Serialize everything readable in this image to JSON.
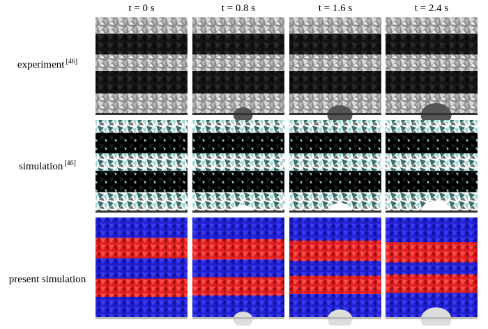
{
  "columns": [
    "t = 0 s",
    "t = 0.8 s",
    "t = 1.6 s",
    "t = 2.4 s"
  ],
  "rows": [
    {
      "label": "experiment",
      "ref": "[46]"
    },
    {
      "label": "simulation",
      "ref": "[46]"
    },
    {
      "label": "present simulation"
    }
  ]
}
